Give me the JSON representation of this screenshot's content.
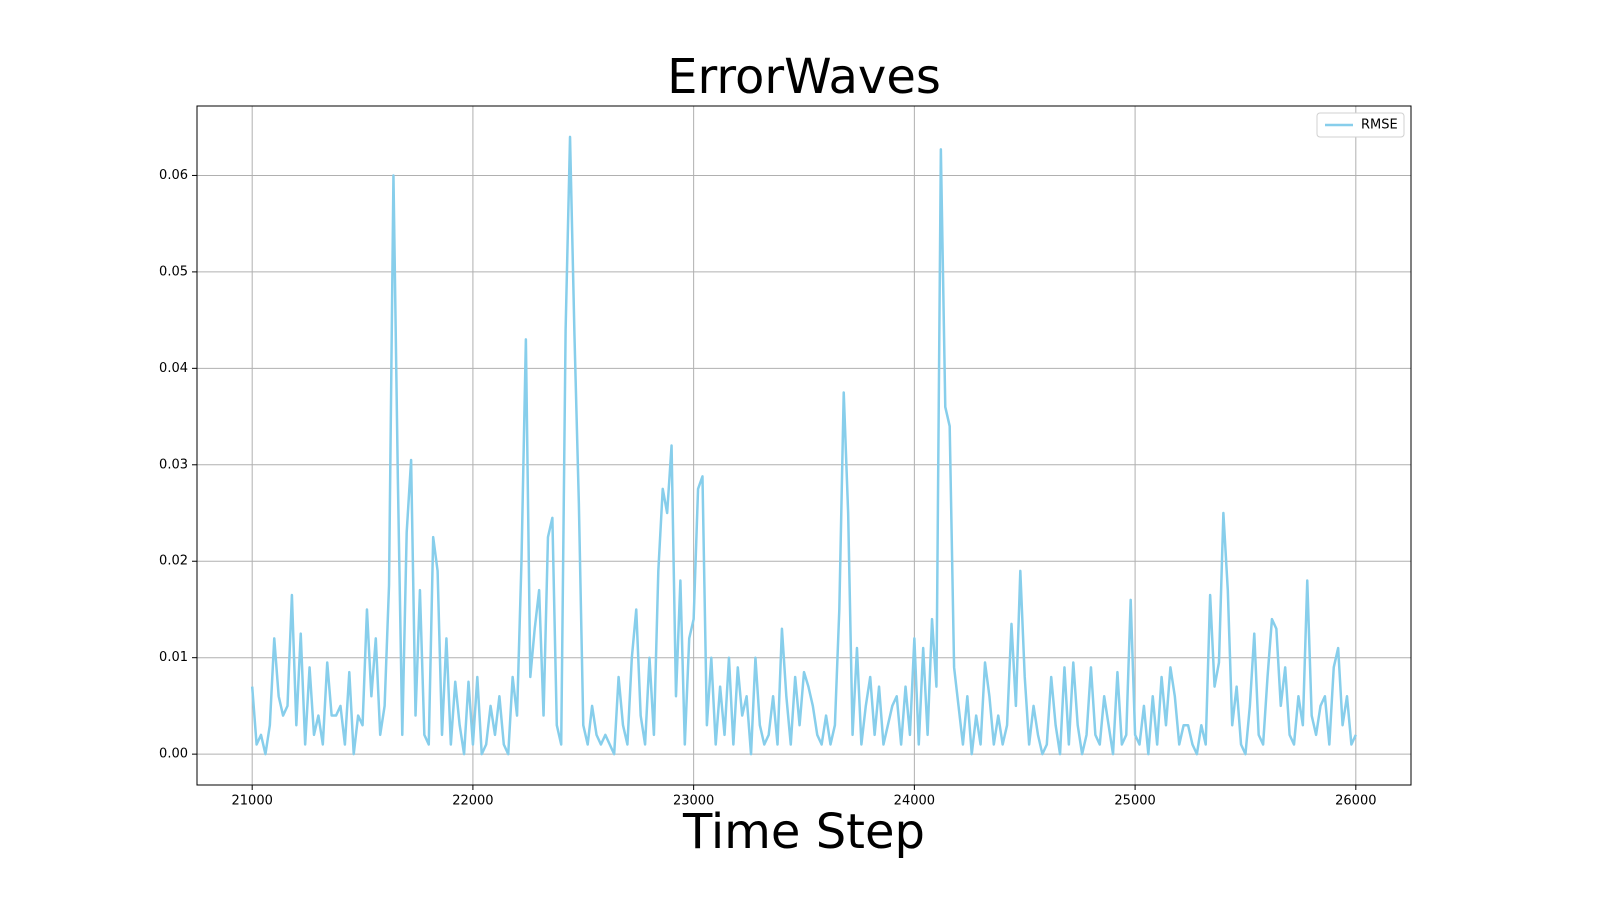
{
  "chart_data": {
    "type": "line",
    "title": "ErrorWaves",
    "x_label": "Time Step",
    "xlim": [
      20750,
      26250
    ],
    "ylim": [
      -0.0032,
      0.0672
    ],
    "xticks": [
      21000,
      22000,
      23000,
      24000,
      25000,
      26000
    ],
    "yticks": [
      {
        "value": 0,
        "label": "0.00"
      },
      {
        "value": 0.01,
        "label": "0.01"
      },
      {
        "value": 0.02,
        "label": "0.02"
      },
      {
        "value": 0.03,
        "label": "0.03"
      },
      {
        "value": 0.04,
        "label": "0.04"
      },
      {
        "value": 0.05,
        "label": "0.05"
      },
      {
        "value": 0.06,
        "label": "0.06"
      }
    ],
    "grid": true,
    "legend": "upper right",
    "x": [
      21000,
      21020,
      21040,
      21060,
      21080,
      21100,
      21120,
      21140,
      21160,
      21180,
      21200,
      21220,
      21240,
      21260,
      21280,
      21300,
      21320,
      21340,
      21360,
      21380,
      21400,
      21420,
      21440,
      21460,
      21480,
      21500,
      21520,
      21540,
      21560,
      21580,
      21600,
      21620,
      21640,
      21660,
      21680,
      21700,
      21720,
      21740,
      21760,
      21780,
      21800,
      21820,
      21840,
      21860,
      21880,
      21900,
      21920,
      21940,
      21960,
      21980,
      22000,
      22020,
      22040,
      22060,
      22080,
      22100,
      22120,
      22140,
      22160,
      22180,
      22200,
      22220,
      22240,
      22260,
      22280,
      22300,
      22320,
      22340,
      22360,
      22380,
      22400,
      22420,
      22440,
      22460,
      22480,
      22500,
      22520,
      22540,
      22560,
      22580,
      22600,
      22620,
      22640,
      22660,
      22680,
      22700,
      22720,
      22740,
      22760,
      22780,
      22800,
      22820,
      22840,
      22860,
      22880,
      22900,
      22920,
      22940,
      22960,
      22980,
      23000,
      23020,
      23040,
      23060,
      23080,
      23100,
      23120,
      23140,
      23160,
      23180,
      23200,
      23220,
      23240,
      23260,
      23280,
      23300,
      23320,
      23340,
      23360,
      23380,
      23400,
      23420,
      23440,
      23460,
      23480,
      23500,
      23520,
      23540,
      23560,
      23580,
      23600,
      23620,
      23640,
      23660,
      23680,
      23700,
      23720,
      23740,
      23760,
      23780,
      23800,
      23820,
      23840,
      23860,
      23880,
      23900,
      23920,
      23940,
      23960,
      23980,
      24000,
      24020,
      24040,
      24060,
      24080,
      24100,
      24120,
      24140,
      24160,
      24180,
      24200,
      24220,
      24240,
      24260,
      24280,
      24300,
      24320,
      24340,
      24360,
      24380,
      24400,
      24420,
      24440,
      24460,
      24480,
      24500,
      24520,
      24540,
      24560,
      24580,
      24600,
      24620,
      24640,
      24660,
      24680,
      24700,
      24720,
      24740,
      24760,
      24780,
      24800,
      24820,
      24840,
      24860,
      24880,
      24900,
      24920,
      24940,
      24960,
      24980,
      25000,
      25020,
      25040,
      25060,
      25080,
      25100,
      25120,
      25140,
      25160,
      25180,
      25200,
      25220,
      25240,
      25260,
      25280,
      25300,
      25320,
      25340,
      25360,
      25380,
      25400,
      25420,
      25440,
      25460,
      25480,
      25500,
      25520,
      25540,
      25560,
      25580,
      25600,
      25620,
      25640,
      25660,
      25680,
      25700,
      25720,
      25740,
      25760,
      25780,
      25800,
      25820,
      25840,
      25860,
      25880,
      25900,
      25920,
      25940,
      25960,
      25980,
      26000
    ],
    "series": [
      {
        "name": "RMSE",
        "color": "#87ceeb",
        "values": [
          0.007,
          0.001,
          0.002,
          0.0,
          0.003,
          0.012,
          0.006,
          0.004,
          0.005,
          0.0165,
          0.003,
          0.0125,
          0.001,
          0.009,
          0.002,
          0.004,
          0.001,
          0.0095,
          0.004,
          0.004,
          0.005,
          0.001,
          0.0085,
          0.0,
          0.004,
          0.003,
          0.015,
          0.006,
          0.012,
          0.002,
          0.005,
          0.0175,
          0.06,
          0.0285,
          0.002,
          0.023,
          0.0305,
          0.004,
          0.017,
          0.002,
          0.001,
          0.0225,
          0.019,
          0.002,
          0.012,
          0.001,
          0.0075,
          0.003,
          0.0,
          0.0075,
          0.001,
          0.008,
          0.0,
          0.001,
          0.005,
          0.002,
          0.006,
          0.001,
          0.0,
          0.008,
          0.004,
          0.02,
          0.043,
          0.008,
          0.013,
          0.017,
          0.004,
          0.0225,
          0.0245,
          0.003,
          0.001,
          0.044,
          0.064,
          0.0435,
          0.026,
          0.003,
          0.001,
          0.005,
          0.002,
          0.001,
          0.002,
          0.001,
          0.0,
          0.008,
          0.003,
          0.001,
          0.01,
          0.015,
          0.004,
          0.001,
          0.01,
          0.002,
          0.019,
          0.0275,
          0.025,
          0.032,
          0.006,
          0.018,
          0.001,
          0.012,
          0.014,
          0.0275,
          0.0288,
          0.003,
          0.01,
          0.001,
          0.007,
          0.002,
          0.01,
          0.001,
          0.009,
          0.004,
          0.006,
          0.0,
          0.01,
          0.003,
          0.001,
          0.002,
          0.006,
          0.001,
          0.013,
          0.006,
          0.001,
          0.008,
          0.003,
          0.0085,
          0.007,
          0.005,
          0.002,
          0.001,
          0.004,
          0.001,
          0.003,
          0.015,
          0.0375,
          0.025,
          0.002,
          0.011,
          0.001,
          0.005,
          0.008,
          0.002,
          0.007,
          0.001,
          0.003,
          0.005,
          0.006,
          0.001,
          0.007,
          0.002,
          0.012,
          0.001,
          0.011,
          0.002,
          0.014,
          0.007,
          0.0627,
          0.036,
          0.034,
          0.009,
          0.005,
          0.001,
          0.006,
          0.0,
          0.004,
          0.001,
          0.0095,
          0.006,
          0.001,
          0.004,
          0.001,
          0.003,
          0.0135,
          0.005,
          0.019,
          0.008,
          0.001,
          0.005,
          0.002,
          0.0,
          0.001,
          0.008,
          0.003,
          0.0,
          0.009,
          0.001,
          0.0095,
          0.003,
          0.0,
          0.002,
          0.009,
          0.002,
          0.001,
          0.006,
          0.003,
          0.0,
          0.0085,
          0.001,
          0.002,
          0.016,
          0.002,
          0.001,
          0.005,
          0.0,
          0.006,
          0.001,
          0.008,
          0.003,
          0.009,
          0.006,
          0.001,
          0.003,
          0.003,
          0.001,
          0.0,
          0.003,
          0.001,
          0.0165,
          0.007,
          0.0095,
          0.025,
          0.017,
          0.003,
          0.007,
          0.001,
          0.0,
          0.005,
          0.0125,
          0.002,
          0.001,
          0.008,
          0.014,
          0.013,
          0.005,
          0.009,
          0.002,
          0.001,
          0.006,
          0.003,
          0.018,
          0.004,
          0.002,
          0.005,
          0.006,
          0.001,
          0.009,
          0.011,
          0.003,
          0.006,
          0.001,
          0.002
        ]
      }
    ]
  }
}
